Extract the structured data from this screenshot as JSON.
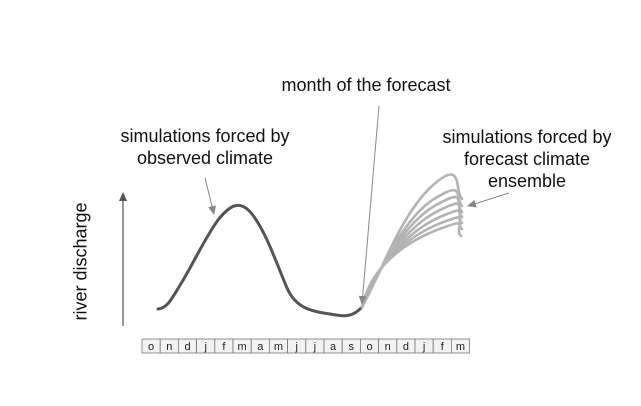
{
  "annotations": {
    "forecast_month": "month of the forecast",
    "observed_line1": "simulations forced by",
    "observed_line2": "observed climate",
    "ensemble_line1": "simulations forced by",
    "ensemble_line2": "forecast climate",
    "ensemble_line3": "ensemble"
  },
  "axis": {
    "ylabel": "river discharge"
  },
  "months": [
    "o",
    "n",
    "d",
    "j",
    "f",
    "m",
    "a",
    "m",
    "j",
    "j",
    "a",
    "s",
    "o",
    "n",
    "d",
    "j",
    "f",
    "m"
  ],
  "colors": {
    "observed_curve": "#555555",
    "ensemble_curves": "#b3b3b3",
    "arrow": "#888888",
    "month_box_fill": "#f2f2f2",
    "month_box_border": "#777777"
  },
  "ensemble": {
    "member_count": 7
  }
}
